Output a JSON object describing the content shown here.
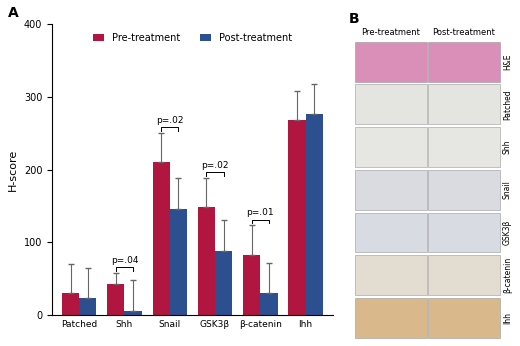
{
  "chart_data": {
    "type": "bar",
    "y_label": "H-score",
    "categories": [
      "Patched",
      "Shh",
      "Snail",
      "GSK3β",
      "β-catenin",
      "Ihh"
    ],
    "series": [
      {
        "name": "Pre-treatment",
        "color": "#b0163f",
        "values": [
          30,
          42,
          210,
          148,
          83,
          268
        ],
        "errors": [
          40,
          16,
          40,
          40,
          40,
          40
        ]
      },
      {
        "name": "Post-treatment",
        "color": "#2c4f8f",
        "values": [
          23,
          6,
          146,
          88,
          30,
          276
        ],
        "errors": [
          42,
          42,
          42,
          42,
          42,
          42
        ]
      }
    ],
    "annotations": [
      {
        "category": "Shh",
        "text": "p=.04"
      },
      {
        "category": "Snail",
        "text": "p=.02"
      },
      {
        "category": "GSK3β",
        "text": "p=.02"
      },
      {
        "category": "β-catenin",
        "text": "p=.01"
      }
    ],
    "ylim": [
      0,
      400
    ],
    "yticks": [
      0,
      100,
      200,
      300,
      400
    ],
    "grid": false,
    "legend": "upper center"
  },
  "panel_labels": [
    "A",
    "B"
  ],
  "image_panel": {
    "columns": [
      "Pre-treatment",
      "Post-treatment"
    ],
    "rows": [
      "H&E",
      "Patched",
      "Shh",
      "Snail",
      "GSK3β",
      "β-catenin",
      "Ihh"
    ]
  }
}
